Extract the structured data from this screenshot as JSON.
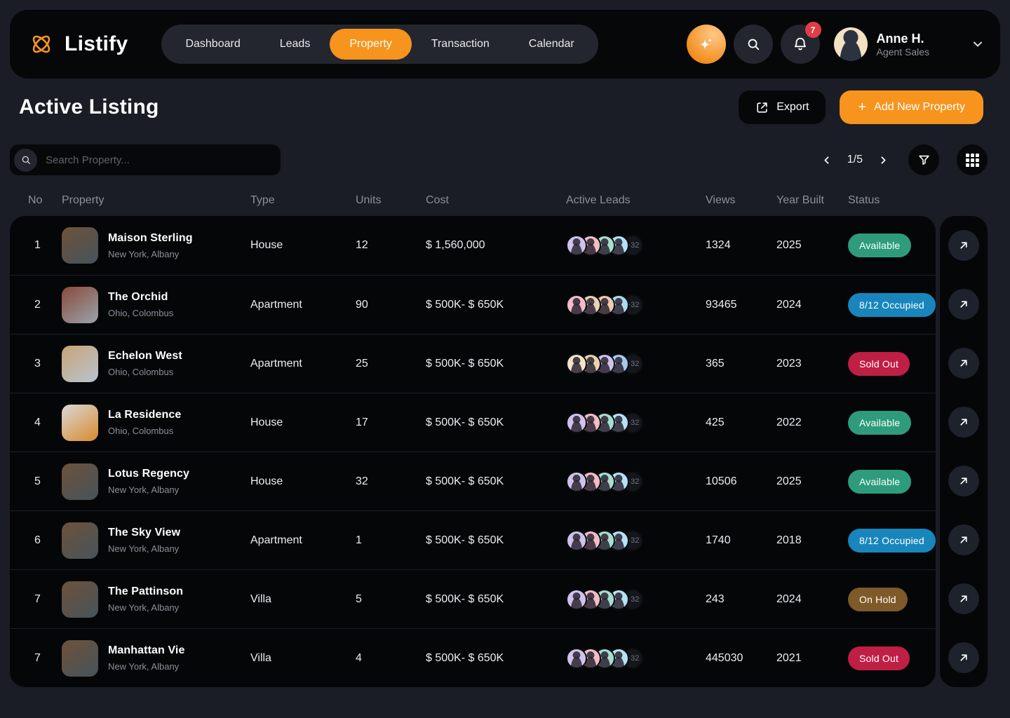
{
  "brand": {
    "name": "Listify",
    "accent": "#F7941E"
  },
  "nav": {
    "items": [
      {
        "label": "Dashboard",
        "active": false
      },
      {
        "label": "Leads",
        "active": false
      },
      {
        "label": "Property",
        "active": true
      },
      {
        "label": "Transaction",
        "active": false
      },
      {
        "label": "Calendar",
        "active": false
      }
    ]
  },
  "header_actions": {
    "notification_count": "7"
  },
  "user": {
    "name": "Anne H.",
    "role": "Agent Sales"
  },
  "page": {
    "title": "Active Listing",
    "export_label": "Export",
    "add_property_label": "Add New Property",
    "search_placeholder": "Search Property...",
    "pagination_label": "1/5"
  },
  "table": {
    "columns": [
      "No",
      "Property",
      "Type",
      "Units",
      "Cost",
      "Active Leads",
      "Views",
      "Year Built",
      "Status"
    ],
    "extra_leads": "+32",
    "status_colors": {
      "available": "#2E9C7C",
      "occupied": "#1886BC",
      "sold": "#BF1F44",
      "hold": "#7D5A28"
    },
    "rows": [
      {
        "no": "1",
        "name": "Maison Sterling",
        "location": "New York, Albany",
        "type": "House",
        "units": "12",
        "cost": "$ 1,560,000",
        "views": "1324",
        "year": "2025",
        "status": "Available",
        "status_type": "available",
        "thumb": [
          "#6e523a",
          "#46535c"
        ],
        "avatars": [
          "#cfc3ec",
          "#f3bcc9",
          "#a8dcd0",
          "#b5e2f4"
        ]
      },
      {
        "no": "2",
        "name": "The Orchid",
        "location": "Ohio, Colombus",
        "type": "Apartment",
        "units": "90",
        "cost": "$ 500K- $ 650K",
        "views": "93465",
        "year": "2024",
        "status": "8/12 Occupied",
        "status_type": "occupied",
        "thumb": [
          "#8a4a3a",
          "#9aa3ab"
        ],
        "avatars": [
          "#f3bcc9",
          "#e8d2b8",
          "#f0c9b2",
          "#aadcf0"
        ]
      },
      {
        "no": "3",
        "name": "Echelon West",
        "location": "Ohio, Colombus",
        "type": "Apartment",
        "units": "25",
        "cost": "$ 500K- $ 650K",
        "views": "365",
        "year": "2023",
        "status": "Sold Out",
        "status_type": "sold",
        "thumb": [
          "#c9a476",
          "#b7c4cf"
        ],
        "avatars": [
          "#f3e3c8",
          "#ecd2ae",
          "#cfc3ec",
          "#a8c8ee"
        ]
      },
      {
        "no": "4",
        "name": "La Residence",
        "location": "Ohio, Colombus",
        "type": "House",
        "units": "17",
        "cost": "$ 500K- $ 650K",
        "views": "425",
        "year": "2022",
        "status": "Available",
        "status_type": "available",
        "thumb": [
          "#d8d8d8",
          "#d98a2b"
        ],
        "avatars": [
          "#cfc3ec",
          "#f3bcc9",
          "#a8dcd0",
          "#b5e2f4"
        ]
      },
      {
        "no": "5",
        "name": "Lotus Regency",
        "location": "New York, Albany",
        "type": "House",
        "units": "32",
        "cost": "$ 500K- $ 650K",
        "views": "10506",
        "year": "2025",
        "status": "Available",
        "status_type": "available",
        "thumb": [
          "#6e523a",
          "#46535c"
        ],
        "avatars": [
          "#cfc3ec",
          "#f3bcc9",
          "#a8dcd0",
          "#b5e2f4"
        ]
      },
      {
        "no": "6",
        "name": "The Sky View",
        "location": "New York, Albany",
        "type": "Apartment",
        "units": "1",
        "cost": "$ 500K- $ 650K",
        "views": "1740",
        "year": "2018",
        "status": "8/12 Occupied",
        "status_type": "occupied",
        "thumb": [
          "#6e523a",
          "#46535c"
        ],
        "avatars": [
          "#cfc3ec",
          "#f3bcc9",
          "#a8dcd0",
          "#b5e2f4"
        ]
      },
      {
        "no": "7",
        "name": "The Pattinson",
        "location": "New York, Albany",
        "type": "Villa",
        "units": "5",
        "cost": "$ 500K- $ 650K",
        "views": "243",
        "year": "2024",
        "status": "On Hold",
        "status_type": "hold",
        "thumb": [
          "#6e523a",
          "#46535c"
        ],
        "avatars": [
          "#cfc3ec",
          "#f3bcc9",
          "#a8dcd0",
          "#b5e2f4"
        ]
      },
      {
        "no": "7",
        "name": "Manhattan Vie",
        "location": "New York, Albany",
        "type": "Villa",
        "units": "4",
        "cost": "$ 500K- $ 650K",
        "views": "445030",
        "year": "2021",
        "status": "Sold Out",
        "status_type": "sold",
        "thumb": [
          "#6e523a",
          "#46535c"
        ],
        "avatars": [
          "#cfc3ec",
          "#f3bcc9",
          "#a8dcd0",
          "#b5e2f4"
        ]
      }
    ]
  }
}
